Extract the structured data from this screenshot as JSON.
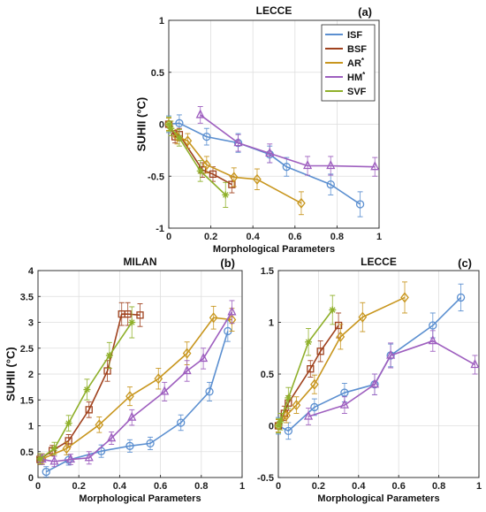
{
  "chart_data": [
    {
      "id": "a",
      "type": "line",
      "title": "LECCE",
      "panel_label": "(a)",
      "xlabel": "Morphological Parameters",
      "ylabel": "SUHII (°C)",
      "xlim": [
        0,
        1
      ],
      "ylim": [
        -1,
        1
      ],
      "xticks": [
        0,
        0.2,
        0.4,
        0.6,
        0.8,
        1
      ],
      "xtick_labels": [
        "0",
        "0.2",
        "0.4",
        "0.6",
        "0.8",
        "1"
      ],
      "yticks": [
        -1,
        -0.5,
        0,
        0.5,
        1
      ],
      "ytick_labels": [
        "-1",
        "-0.5",
        "0",
        "0.5",
        "1"
      ],
      "grid": true,
      "legend": {
        "placement": "top-right",
        "entries": [
          {
            "parts": [
              {
                "text": "ISF"
              }
            ],
            "color": "#5b8fd0"
          },
          {
            "parts": [
              {
                "text": "BSF"
              }
            ],
            "color": "#a0421e"
          },
          {
            "parts": [
              {
                "text": "AR"
              },
              {
                "text": "*",
                "sup": true
              }
            ],
            "color": "#c8961e"
          },
          {
            "parts": [
              {
                "text": "HM"
              },
              {
                "text": "*",
                "sup": true
              }
            ],
            "color": "#9e5fbf"
          },
          {
            "parts": [
              {
                "text": "SVF"
              }
            ],
            "color": "#8fb02a"
          }
        ]
      },
      "series": [
        {
          "key": "ISF",
          "color": "#5b8fd0",
          "marker": "circle",
          "x": [
            0,
            0.05,
            0.18,
            0.33,
            0.48,
            0.56,
            0.77,
            0.91
          ],
          "y": [
            0,
            0.01,
            -0.12,
            -0.18,
            -0.29,
            -0.41,
            -0.58,
            -0.77
          ],
          "err": [
            0.08,
            0.08,
            0.08,
            0.09,
            0.08,
            0.09,
            0.1,
            0.12
          ]
        },
        {
          "key": "BSF",
          "color": "#a0421e",
          "marker": "square",
          "x": [
            0,
            0.03,
            0.05,
            0.16,
            0.21,
            0.3
          ],
          "y": [
            0,
            -0.12,
            -0.1,
            -0.44,
            -0.48,
            -0.58
          ],
          "err": [
            0.06,
            0.06,
            0.06,
            0.07,
            0.07,
            0.08
          ]
        },
        {
          "key": "AR*",
          "color": "#c8961e",
          "marker": "diamond",
          "x": [
            0,
            0.04,
            0.09,
            0.18,
            0.31,
            0.42,
            0.63
          ],
          "y": [
            0,
            -0.12,
            -0.16,
            -0.39,
            -0.51,
            -0.53,
            -0.76
          ],
          "err": [
            0.06,
            0.07,
            0.07,
            0.08,
            0.09,
            0.1,
            0.11
          ]
        },
        {
          "key": "HM*",
          "color": "#9e5fbf",
          "marker": "triangle",
          "x": [
            0.15,
            0.33,
            0.48,
            0.66,
            0.77,
            0.98
          ],
          "y": [
            0.09,
            -0.18,
            -0.28,
            -0.4,
            -0.4,
            -0.41
          ],
          "err": [
            0.08,
            0.08,
            0.09,
            0.09,
            0.09,
            0.09
          ]
        },
        {
          "key": "SVF",
          "color": "#8fb02a",
          "marker": "star",
          "x": [
            0,
            0.01,
            0.05,
            0.15,
            0.27
          ],
          "y": [
            0,
            -0.04,
            -0.13,
            -0.45,
            -0.68
          ],
          "err": [
            0.07,
            0.07,
            0.08,
            0.1,
            0.12
          ]
        }
      ]
    },
    {
      "id": "b",
      "type": "line",
      "title": "MILAN",
      "panel_label": "(b)",
      "xlabel": "Morphological Parameters",
      "ylabel": "SUHII (°C)",
      "xlim": [
        0,
        1
      ],
      "ylim": [
        0,
        4
      ],
      "xticks": [
        0,
        0.2,
        0.4,
        0.6,
        0.8,
        1
      ],
      "xtick_labels": [
        "0",
        "0.2",
        "0.4",
        "0.6",
        "0.8",
        "1"
      ],
      "yticks": [
        0,
        0.5,
        1,
        1.5,
        2,
        2.5,
        3,
        3.5,
        4
      ],
      "ytick_labels": [
        "0",
        "0.5",
        "1",
        "1.5",
        "2",
        "2.5",
        "3",
        "3.5",
        "4"
      ],
      "grid": true,
      "series": [
        {
          "key": "ISF",
          "color": "#5b8fd0",
          "marker": "circle",
          "x": [
            0.04,
            0.15,
            0.31,
            0.45,
            0.55,
            0.7,
            0.84,
            0.93
          ],
          "y": [
            0.11,
            0.34,
            0.51,
            0.61,
            0.66,
            1.06,
            1.66,
            2.83
          ],
          "err": [
            0.1,
            0.1,
            0.12,
            0.12,
            0.12,
            0.15,
            0.18,
            0.2
          ]
        },
        {
          "key": "BSF",
          "color": "#a0421e",
          "marker": "square",
          "x": [
            0.01,
            0.07,
            0.15,
            0.25,
            0.34,
            0.41,
            0.44,
            0.5
          ],
          "y": [
            0.35,
            0.52,
            0.71,
            1.31,
            2.06,
            3.16,
            3.16,
            3.14
          ],
          "err": [
            0.1,
            0.1,
            0.12,
            0.15,
            0.2,
            0.22,
            0.22,
            0.22
          ]
        },
        {
          "key": "AR*",
          "color": "#c8961e",
          "marker": "diamond",
          "x": [
            0.02,
            0.14,
            0.3,
            0.45,
            0.59,
            0.73,
            0.86,
            0.95
          ],
          "y": [
            0.36,
            0.56,
            1.02,
            1.57,
            1.91,
            2.4,
            3.09,
            3.05
          ],
          "err": [
            0.1,
            0.12,
            0.15,
            0.18,
            0.2,
            0.22,
            0.22,
            0.22
          ]
        },
        {
          "key": "HM*",
          "color": "#9e5fbf",
          "marker": "triangle",
          "x": [
            0.02,
            0.08,
            0.16,
            0.25,
            0.36,
            0.46,
            0.62,
            0.73,
            0.81,
            0.95
          ],
          "y": [
            0.35,
            0.31,
            0.35,
            0.38,
            0.76,
            1.16,
            1.66,
            2.06,
            2.3,
            3.2
          ],
          "err": [
            0.1,
            0.1,
            0.1,
            0.12,
            0.12,
            0.15,
            0.18,
            0.2,
            0.2,
            0.22
          ]
        },
        {
          "key": "SVF",
          "color": "#8fb02a",
          "marker": "star",
          "x": [
            0.01,
            0.08,
            0.15,
            0.24,
            0.35,
            0.46
          ],
          "y": [
            0.36,
            0.56,
            1.05,
            1.7,
            2.36,
            3.0
          ],
          "err": [
            0.1,
            0.12,
            0.15,
            0.2,
            0.25,
            0.3
          ]
        }
      ]
    },
    {
      "id": "c",
      "type": "line",
      "title": "LECCE",
      "panel_label": "(c)",
      "xlabel": "Morphological Parameters",
      "ylabel": "",
      "xlim": [
        0,
        1
      ],
      "ylim": [
        -0.5,
        1.5
      ],
      "xticks": [
        0,
        0.2,
        0.4,
        0.6,
        0.8,
        1
      ],
      "xtick_labels": [
        "0",
        "0.2",
        "0.4",
        "0.6",
        "0.8",
        "1"
      ],
      "yticks": [
        -0.5,
        0,
        0.5,
        1,
        1.5
      ],
      "ytick_labels": [
        "-0.5",
        "0",
        "0.5",
        "1",
        "1.5"
      ],
      "grid": true,
      "series": [
        {
          "key": "ISF",
          "color": "#5b8fd0",
          "marker": "circle",
          "x": [
            0,
            0.05,
            0.18,
            0.33,
            0.48,
            0.56,
            0.77,
            0.91
          ],
          "y": [
            0,
            -0.05,
            0.18,
            0.32,
            0.4,
            0.68,
            0.97,
            1.24
          ],
          "err": [
            0.08,
            0.08,
            0.08,
            0.09,
            0.1,
            0.11,
            0.12,
            0.13
          ]
        },
        {
          "key": "BSF",
          "color": "#a0421e",
          "marker": "square",
          "x": [
            0,
            0.03,
            0.05,
            0.16,
            0.21,
            0.3
          ],
          "y": [
            0,
            0.12,
            0.22,
            0.55,
            0.72,
            0.97
          ],
          "err": [
            0.06,
            0.07,
            0.07,
            0.08,
            0.1,
            0.12
          ]
        },
        {
          "key": "AR*",
          "color": "#c8961e",
          "marker": "diamond",
          "x": [
            0,
            0.04,
            0.09,
            0.18,
            0.31,
            0.42,
            0.63
          ],
          "y": [
            0,
            0.1,
            0.2,
            0.4,
            0.86,
            1.05,
            1.24
          ],
          "err": [
            0.06,
            0.07,
            0.08,
            0.09,
            0.12,
            0.14,
            0.15
          ]
        },
        {
          "key": "HM*",
          "color": "#9e5fbf",
          "marker": "triangle",
          "x": [
            0.15,
            0.33,
            0.48,
            0.56,
            0.77,
            0.98
          ],
          "y": [
            0.09,
            0.2,
            0.4,
            0.68,
            0.82,
            0.59
          ],
          "err": [
            0.08,
            0.08,
            0.1,
            0.12,
            0.1,
            0.09
          ]
        },
        {
          "key": "SVF",
          "color": "#8fb02a",
          "marker": "star",
          "x": [
            0,
            0.01,
            0.05,
            0.15,
            0.27
          ],
          "y": [
            0,
            0.04,
            0.27,
            0.81,
            1.12
          ],
          "err": [
            0.07,
            0.08,
            0.1,
            0.13,
            0.14
          ]
        }
      ]
    }
  ]
}
